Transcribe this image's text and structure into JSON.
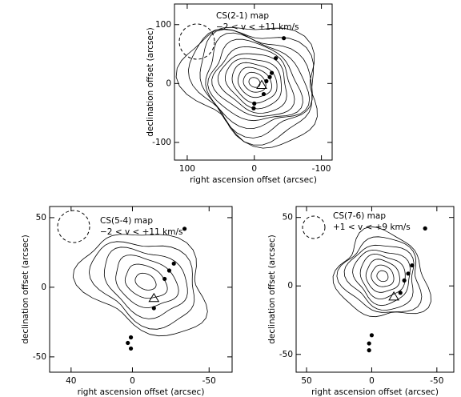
{
  "chart_data": [
    {
      "type": "scatter",
      "annotations": [
        "CS(2-1) map",
        "−2 < v < +11 km/s"
      ],
      "xlabel": "right ascension offset (arcsec)",
      "ylabel": "declination offset (arcsec)",
      "xlim": [
        119,
        -116
      ],
      "ylim": [
        -130,
        135
      ],
      "xticks": [
        100,
        0,
        -100
      ],
      "yticks": [
        -100,
        0,
        100
      ],
      "x": [
        -44,
        -32,
        -26,
        -23,
        -18,
        -14,
        0,
        1
      ],
      "y": [
        77,
        43,
        18,
        11,
        4,
        -18,
        -34,
        -42
      ],
      "marker_color": "#000000",
      "triangle": {
        "x": -11,
        "y": -3
      }
    },
    {
      "type": "scatter",
      "annotations": [
        "CS(5-4) map",
        "−2 < v < +11 km/s"
      ],
      "xlabel": "right ascension offset (arcsec)",
      "ylabel": "declination offset (arcsec)",
      "xlim": [
        54,
        -65
      ],
      "ylim": [
        -61,
        58
      ],
      "xticks": [
        40,
        0,
        -50
      ],
      "yticks": [
        -50,
        0,
        50
      ],
      "x": [
        -34,
        -27,
        -24,
        -21,
        -14,
        1,
        3,
        1
      ],
      "y": [
        42,
        17,
        12,
        6,
        -15,
        -36,
        -40,
        -44
      ],
      "marker_color": "#000000",
      "triangle": {
        "x": -14,
        "y": -8
      }
    },
    {
      "type": "scatter",
      "annotations": [
        "CS(7-6) map",
        "+1 < v < +9 km/s"
      ],
      "xlabel": "right ascension offset (arcsec)",
      "ylabel": "declination offset (arcsec)",
      "xlim": [
        58,
        -63
      ],
      "ylim": [
        -63,
        58
      ],
      "xticks": [
        50,
        0,
        -50
      ],
      "yticks": [
        -50,
        0,
        50
      ],
      "x": [
        -41,
        -31,
        -28,
        -25,
        -22,
        0,
        2,
        2
      ],
      "y": [
        42,
        15,
        9,
        4,
        -5,
        -36,
        -42,
        -47
      ],
      "marker_color": "#000000",
      "triangle": {
        "x": -17,
        "y": -8
      }
    }
  ]
}
